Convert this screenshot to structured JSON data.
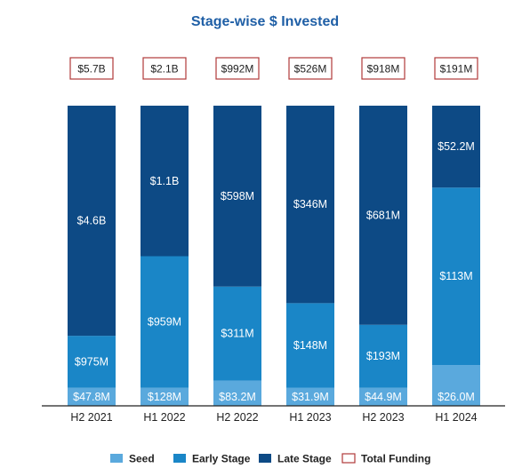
{
  "chart_data": {
    "type": "bar",
    "stacked": true,
    "normalized": true,
    "title": "Stage-wise $ Invested",
    "categories": [
      "H2 2021",
      "H1 2022",
      "H2 2022",
      "H1 2023",
      "H2 2023",
      "H1 2024"
    ],
    "series": [
      {
        "name": "Seed",
        "values": [
          47.8,
          128,
          83.2,
          31.9,
          44.9,
          26.0
        ],
        "labels": [
          "$47.8M",
          "$128M",
          "$83.2M",
          "$31.9M",
          "$44.9M",
          "$26.0M"
        ]
      },
      {
        "name": "Early Stage",
        "values": [
          975,
          959,
          311,
          148,
          193,
          113
        ],
        "labels": [
          "$975M",
          "$959M",
          "$311M",
          "$148M",
          "$193M",
          "$113M"
        ]
      },
      {
        "name": "Late Stage",
        "values": [
          4600,
          1100,
          598,
          346,
          681,
          52.2
        ],
        "labels": [
          "$4.6B",
          "$1.1B",
          "$598M",
          "$346M",
          "$681M",
          "$52.2M"
        ]
      }
    ],
    "total_funding": {
      "name": "Total Funding",
      "labels": [
        "$5.7B",
        "$2.1B",
        "$992M",
        "$526M",
        "$918M",
        "$191M"
      ]
    },
    "legend": [
      "Seed",
      "Early Stage",
      "Late Stage",
      "Total Funding"
    ],
    "legend_position": "bottom",
    "grid": false,
    "colors": {
      "title": "#1f5fa6",
      "seed": "#5aa9dd",
      "early": "#1a86c7",
      "late": "#0d4a85",
      "total_border": "#b03a3a",
      "text_on_bar": "#ffffff",
      "axis": "#222222"
    }
  }
}
